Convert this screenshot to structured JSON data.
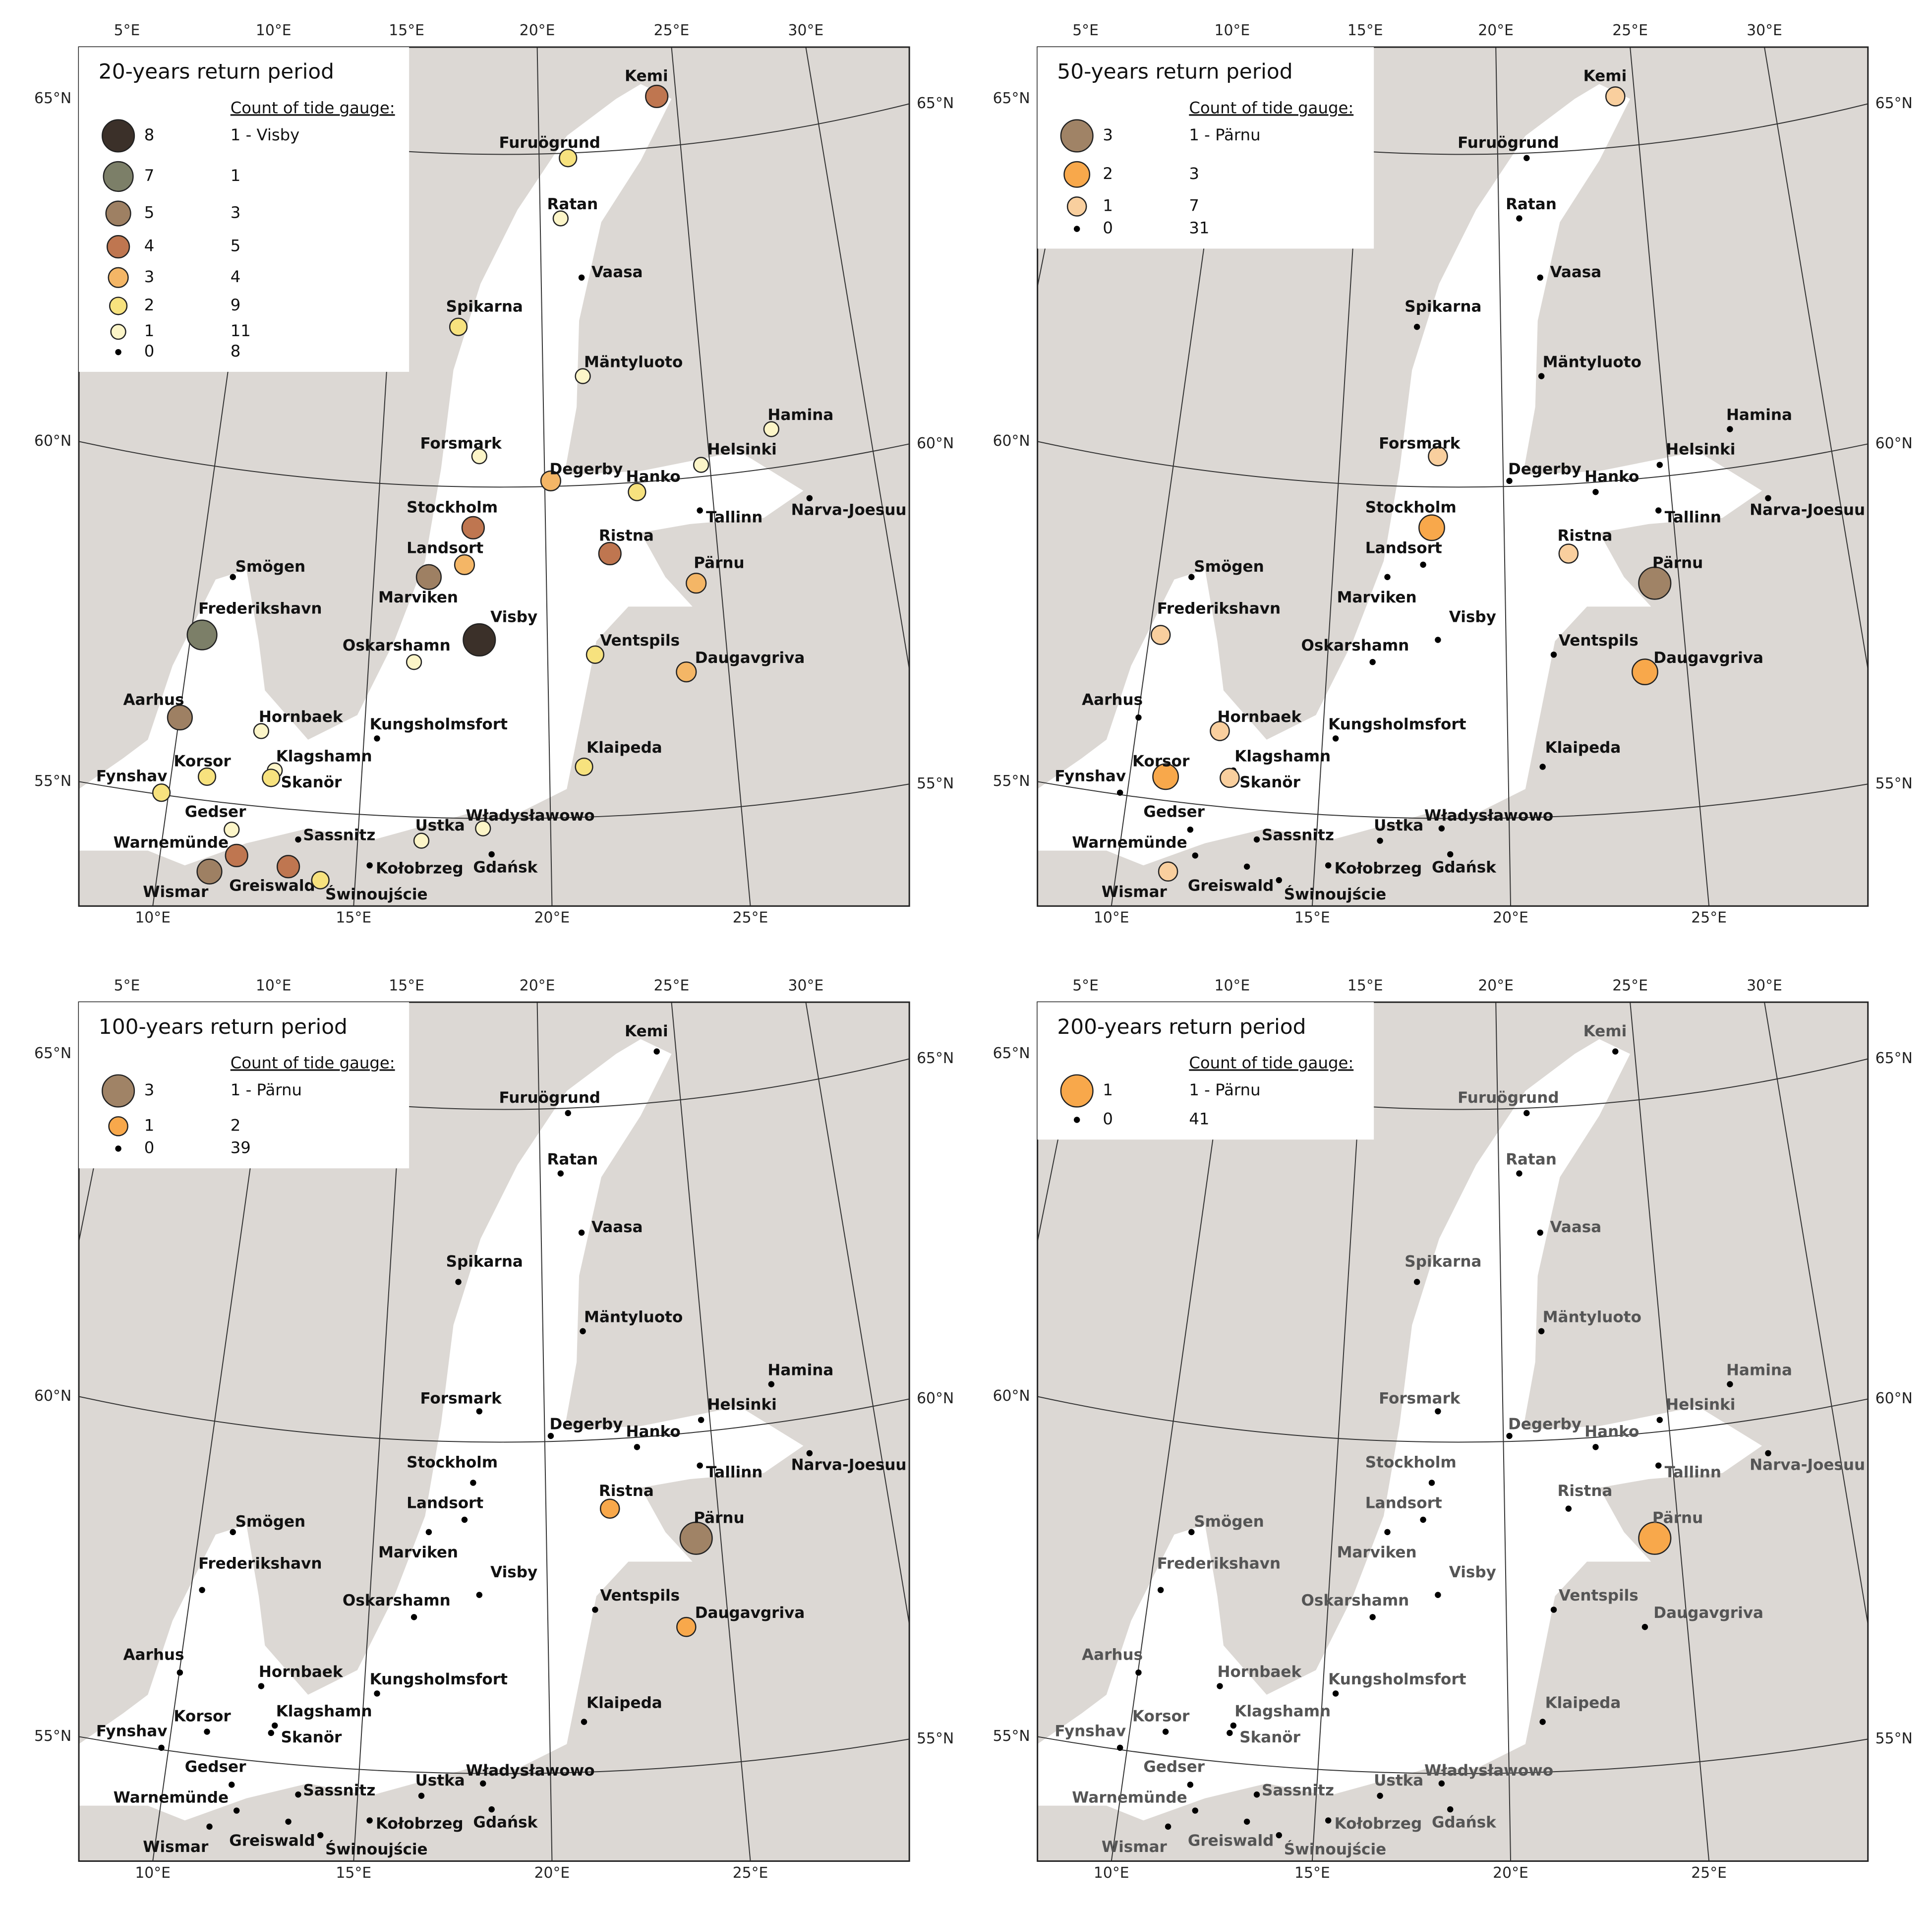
{
  "stations": [
    "Kemi",
    "Furuögrund",
    "Ratan",
    "Vaasa",
    "Spikarna",
    "Mäntyluoto",
    "Hamina",
    "Forsmark",
    "Helsinki",
    "Degerby",
    "Hanko",
    "Narva-Joesuu",
    "Tallinn",
    "Stockholm",
    "Ristna",
    "Landsort",
    "Pärnu",
    "Smögen",
    "Marviken",
    "Visby",
    "Frederikshavn",
    "Oskarshamn",
    "Ventspils",
    "Daugavgriva",
    "Aarhus",
    "Hornbaek",
    "Kungsholmsfort",
    "Klaipeda",
    "Klagshamn",
    "Korsor",
    "Skanör",
    "Fynshav",
    "Gedser",
    "Sassnitz",
    "Ustka",
    "Władysławowo",
    "Warnemünde",
    "Kołobrzeg",
    "Gdańsk",
    "Wismar",
    "Greiswald",
    "Świnoujście"
  ],
  "graticule": {
    "top": [
      "5°E",
      "10°E",
      "15°E",
      "20°E",
      "25°E",
      "30°E"
    ],
    "bottom": [
      "10°E",
      "15°E",
      "20°E",
      "25°E"
    ],
    "left": [
      "65°N",
      "60°N",
      "55°N"
    ],
    "right": [
      "65°N",
      "60°N",
      "55°N"
    ]
  },
  "panels": [
    {
      "title": "20-years return period",
      "legend_header": "Count of tide gauge:",
      "legend": [
        {
          "value": 8,
          "count": "1 - Visby",
          "color": "#3b3029"
        },
        {
          "value": 7,
          "count": 1,
          "color": "#7c7f68"
        },
        {
          "value": 5,
          "count": 3,
          "color": "#9e8063"
        },
        {
          "value": 4,
          "count": 5,
          "color": "#bf7650"
        },
        {
          "value": 3,
          "count": 4,
          "color": "#f4b666"
        },
        {
          "value": 2,
          "count": 9,
          "color": "#f7e27e"
        },
        {
          "value": 1,
          "count": 11,
          "color": "#fcf5c8"
        },
        {
          "value": 0,
          "count": 8,
          "color": "#000000"
        }
      ],
      "values": [
        4,
        2,
        1,
        0,
        2,
        1,
        1,
        1,
        1,
        3,
        2,
        0,
        0,
        4,
        4,
        3,
        3,
        0,
        5,
        8,
        7,
        1,
        2,
        3,
        5,
        1,
        0,
        2,
        1,
        2,
        2,
        2,
        1,
        0,
        1,
        1,
        4,
        0,
        0,
        5,
        4,
        2
      ]
    },
    {
      "title": "50-years return period",
      "legend_header": "Count of tide gauge:",
      "legend": [
        {
          "value": 3,
          "count": "1 - Pärnu",
          "color": "#a08366"
        },
        {
          "value": 2,
          "count": 3,
          "color": "#f8a84b"
        },
        {
          "value": 1,
          "count": 7,
          "color": "#f9cf9e"
        },
        {
          "value": 0,
          "count": 31,
          "color": "#000000"
        }
      ],
      "values": [
        1,
        0,
        0,
        0,
        0,
        0,
        0,
        1,
        0,
        0,
        0,
        0,
        0,
        2,
        1,
        0,
        3,
        0,
        0,
        0,
        1,
        0,
        0,
        2,
        0,
        1,
        0,
        0,
        0,
        2,
        1,
        0,
        0,
        0,
        0,
        0,
        0,
        0,
        0,
        1,
        0,
        0
      ]
    },
    {
      "title": "100-years return period",
      "legend_header": "Count of tide gauge:",
      "legend": [
        {
          "value": 3,
          "count": "1 - Pärnu",
          "color": "#a08366"
        },
        {
          "value": 1,
          "count": 2,
          "color": "#f8a84b"
        },
        {
          "value": 0,
          "count": 39,
          "color": "#000000"
        }
      ],
      "values": [
        0,
        0,
        0,
        0,
        0,
        0,
        0,
        0,
        0,
        0,
        0,
        0,
        0,
        0,
        1,
        0,
        3,
        0,
        0,
        0,
        0,
        0,
        0,
        1,
        0,
        0,
        0,
        0,
        0,
        0,
        0,
        0,
        0,
        0,
        0,
        0,
        0,
        0,
        0,
        0,
        0,
        0
      ]
    },
    {
      "title": "200-years return period",
      "legend_header": "Count of tide gauge:",
      "legend": [
        {
          "value": 1,
          "count": "1 - Pärnu",
          "color": "#f8a84b"
        },
        {
          "value": 0,
          "count": 41,
          "color": "#000000"
        }
      ],
      "values": [
        0,
        0,
        0,
        0,
        0,
        0,
        0,
        0,
        0,
        0,
        0,
        0,
        0,
        0,
        0,
        0,
        1,
        0,
        0,
        0,
        0,
        0,
        0,
        0,
        0,
        0,
        0,
        0,
        0,
        0,
        0,
        0,
        0,
        0,
        0,
        0,
        0,
        0,
        0,
        0,
        0,
        0
      ]
    }
  ]
}
